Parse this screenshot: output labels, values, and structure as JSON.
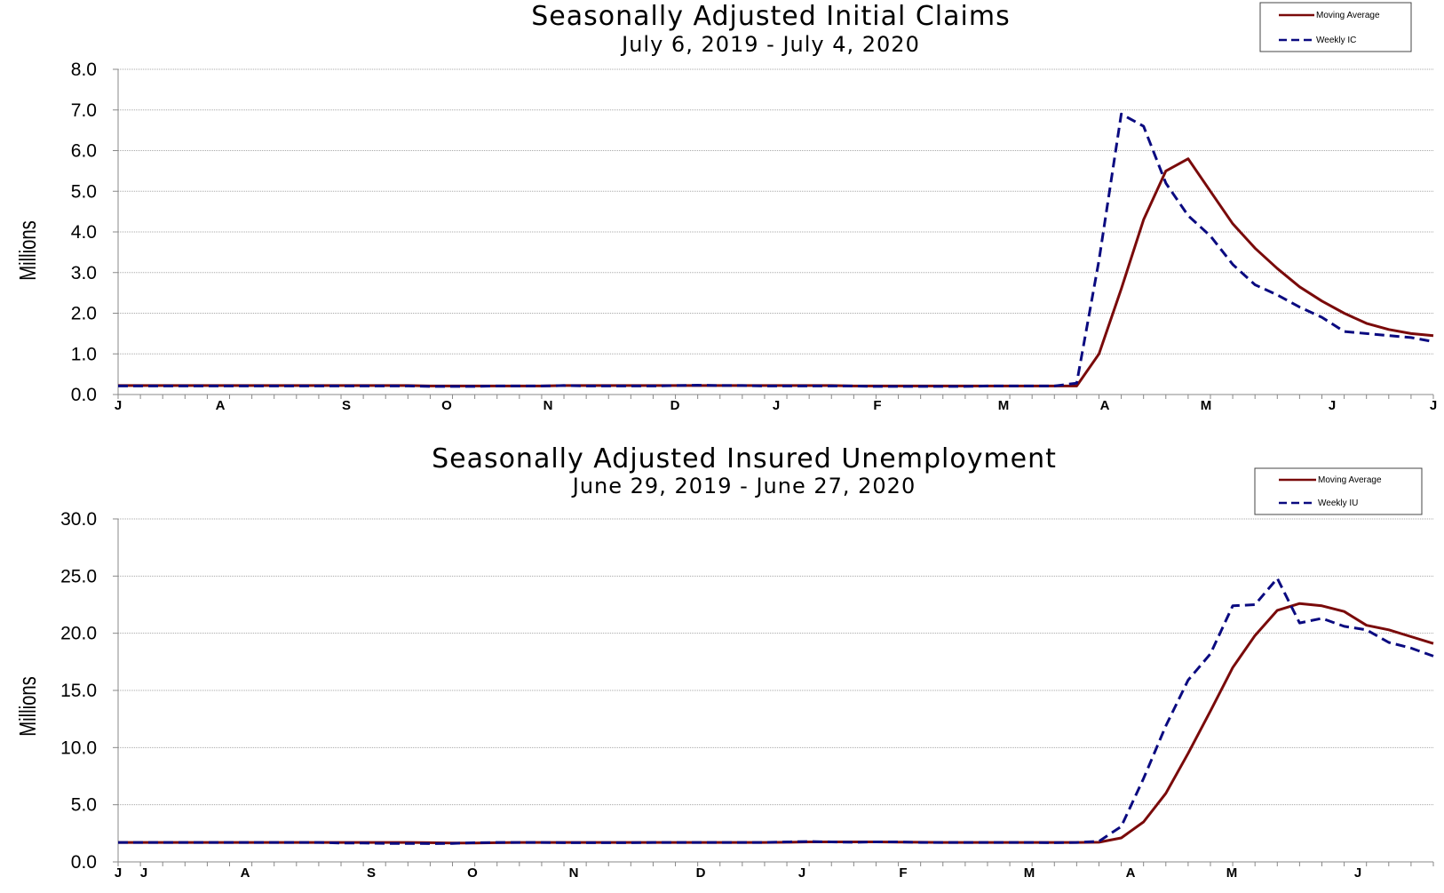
{
  "chart_data": [
    {
      "type": "line",
      "title": "Seasonally Adjusted Initial Claims",
      "subtitle": "July 6, 2019 - July 4, 2020",
      "ylabel": "Millions",
      "ylim": [
        0,
        8
      ],
      "yticks": [
        "0.0",
        "1.0",
        "2.0",
        "3.0",
        "4.0",
        "5.0",
        "6.0",
        "7.0",
        "8.0"
      ],
      "xtick_labels": [
        "J",
        "A",
        "S",
        "O",
        "N",
        "D",
        "J",
        "F",
        "M",
        "A",
        "M",
        "J",
        "J"
      ],
      "grid": true,
      "legend_position": "top-right",
      "series": [
        {
          "name": "Moving Average",
          "color": "#7a0a0a",
          "style": "solid",
          "values": [
            0.22,
            0.22,
            0.22,
            0.22,
            0.22,
            0.22,
            0.22,
            0.22,
            0.22,
            0.22,
            0.22,
            0.22,
            0.22,
            0.22,
            0.21,
            0.21,
            0.21,
            0.21,
            0.21,
            0.21,
            0.22,
            0.22,
            0.22,
            0.22,
            0.22,
            0.22,
            0.22,
            0.22,
            0.22,
            0.22,
            0.22,
            0.22,
            0.22,
            0.21,
            0.21,
            0.21,
            0.21,
            0.21,
            0.21,
            0.21,
            0.21,
            0.21,
            0.21,
            0.21,
            1.0,
            2.6,
            4.3,
            5.5,
            5.8,
            5.0,
            4.2,
            3.6,
            3.1,
            2.65,
            2.3,
            2.0,
            1.75,
            1.6,
            1.5,
            1.45
          ]
        },
        {
          "name": "Weekly IC",
          "color": "#0a0a80",
          "style": "dashed",
          "values": [
            0.21,
            0.21,
            0.21,
            0.21,
            0.21,
            0.21,
            0.21,
            0.21,
            0.21,
            0.21,
            0.21,
            0.21,
            0.21,
            0.21,
            0.2,
            0.2,
            0.2,
            0.21,
            0.21,
            0.21,
            0.22,
            0.21,
            0.21,
            0.21,
            0.21,
            0.22,
            0.23,
            0.22,
            0.22,
            0.21,
            0.21,
            0.21,
            0.21,
            0.21,
            0.2,
            0.2,
            0.2,
            0.2,
            0.2,
            0.21,
            0.21,
            0.21,
            0.21,
            0.28,
            3.3,
            6.9,
            6.6,
            5.2,
            4.4,
            3.9,
            3.2,
            2.7,
            2.45,
            2.15,
            1.9,
            1.55,
            1.5,
            1.45,
            1.4,
            1.3
          ]
        }
      ]
    },
    {
      "type": "line",
      "title": "Seasonally Adjusted Insured Unemployment",
      "subtitle": "June 29, 2019 - June 27, 2020",
      "ylabel": "Millions",
      "ylim": [
        0,
        30
      ],
      "yticks": [
        "0.0",
        "5.0",
        "10.0",
        "15.0",
        "20.0",
        "25.0",
        "30.0"
      ],
      "xtick_labels": [
        "J",
        "J",
        "A",
        "S",
        "O",
        "N",
        "D",
        "J",
        "F",
        "M",
        "A",
        "M",
        "J"
      ],
      "grid": true,
      "legend_position": "top-right",
      "series": [
        {
          "name": "Moving Average",
          "color": "#7a0a0a",
          "style": "solid",
          "values": [
            1.7,
            1.7,
            1.7,
            1.7,
            1.7,
            1.7,
            1.7,
            1.7,
            1.7,
            1.7,
            1.7,
            1.7,
            1.7,
            1.7,
            1.68,
            1.65,
            1.65,
            1.68,
            1.7,
            1.7,
            1.7,
            1.7,
            1.7,
            1.7,
            1.7,
            1.7,
            1.7,
            1.7,
            1.7,
            1.7,
            1.72,
            1.75,
            1.75,
            1.75,
            1.75,
            1.73,
            1.72,
            1.7,
            1.7,
            1.7,
            1.7,
            1.7,
            1.7,
            1.7,
            1.72,
            2.1,
            3.5,
            6.0,
            9.5,
            13.2,
            17.0,
            19.8,
            22.0,
            22.6,
            22.4,
            21.9,
            20.7,
            20.3,
            19.7,
            19.1
          ]
        },
        {
          "name": "Weekly IU",
          "color": "#0a0a80",
          "style": "dashed",
          "values": [
            1.7,
            1.7,
            1.7,
            1.7,
            1.7,
            1.7,
            1.7,
            1.7,
            1.7,
            1.7,
            1.65,
            1.65,
            1.62,
            1.62,
            1.6,
            1.62,
            1.68,
            1.7,
            1.7,
            1.7,
            1.68,
            1.68,
            1.68,
            1.68,
            1.7,
            1.7,
            1.7,
            1.7,
            1.7,
            1.7,
            1.75,
            1.78,
            1.75,
            1.72,
            1.75,
            1.75,
            1.7,
            1.7,
            1.7,
            1.7,
            1.7,
            1.7,
            1.68,
            1.7,
            1.8,
            3.1,
            7.3,
            11.9,
            15.9,
            18.2,
            22.4,
            22.5,
            24.8,
            20.9,
            21.3,
            20.6,
            20.3,
            19.2,
            18.7,
            18.0
          ]
        }
      ]
    }
  ]
}
